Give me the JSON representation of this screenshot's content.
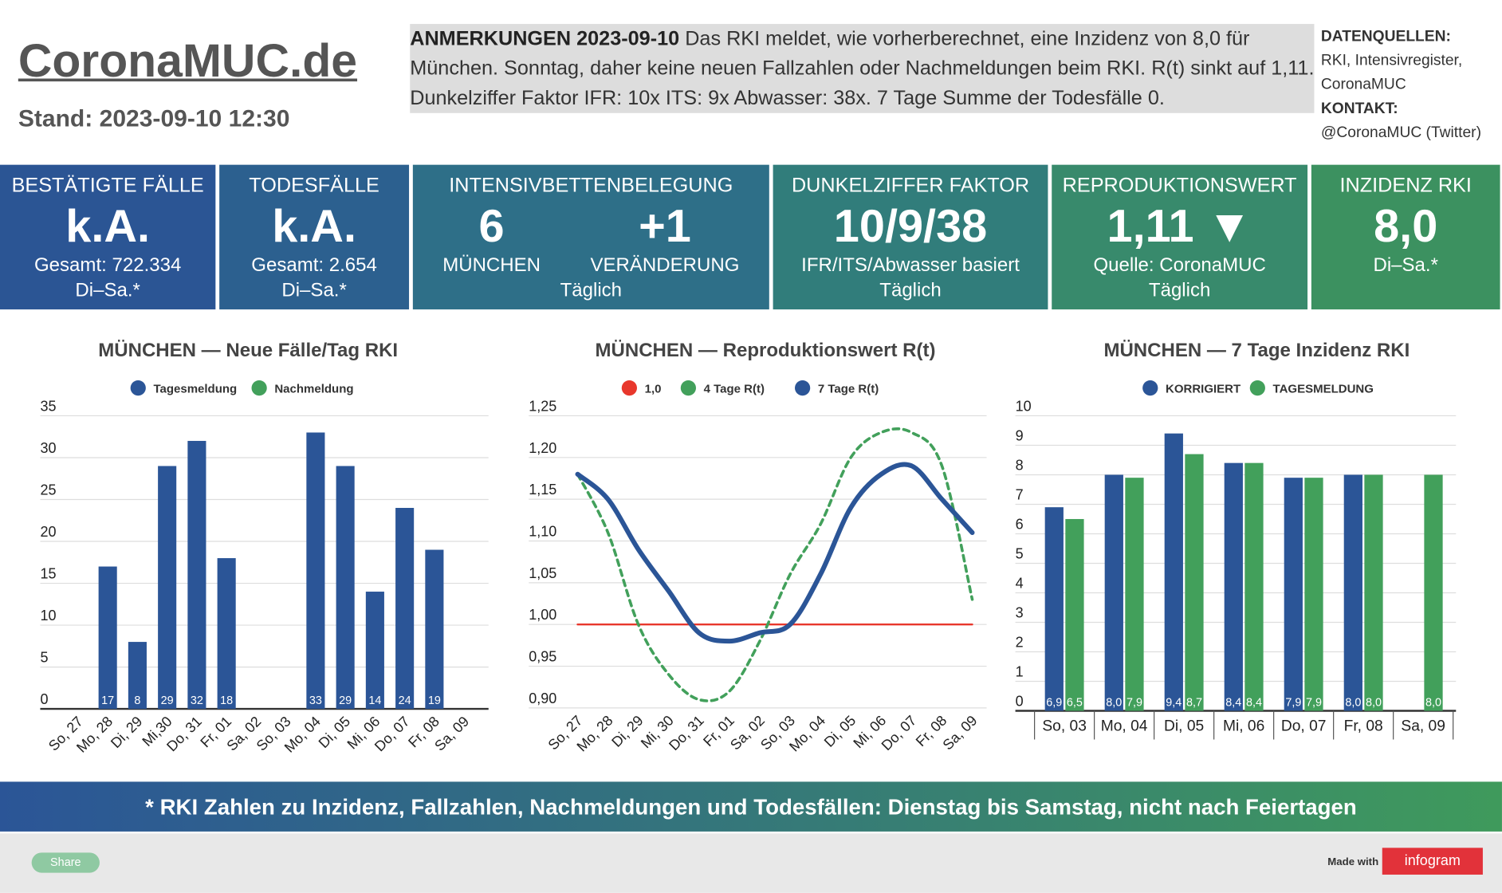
{
  "header": {
    "logo": "CoronaMUC.de",
    "stand": "Stand: 2023-09-10 12:30",
    "note_title": "ANMERKUNGEN 2023-09-10",
    "note_text": "Das RKI meldet, wie vorherberechnet, eine Inzidenz von 8,0 für München. Sonntag, daher keine neuen Fallzahlen oder Nachmeldungen beim RKI. R(t) sinkt auf 1,11. Dunkelziffer Faktor IFR: 10x ITS: 9x Abwasser: 38x. 7 Tage Summe der Todesfälle 0.",
    "sources_title": "DATENQUELLEN:",
    "sources": "RKI, Intensivregister, CoronaMUC",
    "contact_title": "KONTAKT:",
    "contact": "@CoronaMUC (Twitter)"
  },
  "kpis": [
    {
      "title": "BESTÄTIGTE FÄLLE",
      "value": "k.A.",
      "lines": [
        "Gesamt: 722.334",
        "Di–Sa.*"
      ]
    },
    {
      "title": "TODESFÄLLE",
      "value": "k.A.",
      "lines": [
        "Gesamt: 2.654",
        "Di–Sa.*"
      ]
    },
    {
      "title": "INTENSIVBETTENBELEGUNG",
      "values": [
        {
          "value": "6",
          "label": "MÜNCHEN"
        },
        {
          "value": "+1",
          "label": "VERÄNDERUNG"
        }
      ],
      "lines": [
        "Täglich"
      ]
    },
    {
      "title": "DUNKELZIFFER FAKTOR",
      "value": "10/9/38",
      "lines": [
        "IFR/ITS/Abwasser basiert",
        "Täglich"
      ]
    },
    {
      "title": "REPRODUKTIONSWERT",
      "value": "1,11 ▼",
      "lines": [
        "Quelle: CoronaMUC",
        "Täglich"
      ]
    },
    {
      "title": "INZIDENZ RKI",
      "value": "8,0",
      "lines": [
        "Di–Sa.*"
      ]
    }
  ],
  "chart_data": [
    {
      "type": "bar",
      "title": "MÜNCHEN — Neue Fälle/Tag RKI",
      "categories": [
        "So, 27",
        "Mo, 28",
        "Di, 29",
        "Mi,30",
        "Do, 31",
        "Fr, 01",
        "Sa, 02",
        "So, 03",
        "Mo, 04",
        "Di, 05",
        "Mi, 06",
        "Do, 07",
        "Fr, 08",
        "Sa, 09"
      ],
      "series": [
        {
          "name": "Tagesmeldung",
          "color": "#2b5597",
          "values": [
            null,
            17,
            8,
            29,
            32,
            18,
            null,
            null,
            33,
            29,
            14,
            24,
            19,
            null
          ]
        },
        {
          "name": "Nachmeldung",
          "color": "#42a05b",
          "values": [
            null,
            null,
            null,
            null,
            null,
            null,
            null,
            null,
            null,
            null,
            null,
            null,
            null,
            null
          ]
        }
      ],
      "ylim": [
        0,
        35
      ],
      "yticks": [
        0,
        5,
        10,
        15,
        20,
        25,
        30,
        35
      ],
      "grid": true
    },
    {
      "type": "line",
      "title": "MÜNCHEN — Reproduktionswert R(t)",
      "categories": [
        "So, 27",
        "Mo, 28",
        "Di, 29",
        "Mi, 30",
        "Do, 31",
        "Fr, 01",
        "Sa, 02",
        "So, 03",
        "Mo, 04",
        "Di, 05",
        "Mi, 06",
        "Do, 07",
        "Fr, 08",
        "Sa, 09"
      ],
      "series": [
        {
          "name": "1,0",
          "color": "#e8372c",
          "values": [
            1.0,
            1.0,
            1.0,
            1.0,
            1.0,
            1.0,
            1.0,
            1.0,
            1.0,
            1.0,
            1.0,
            1.0,
            1.0,
            1.0
          ]
        },
        {
          "name": "4 Tage R(t)",
          "color": "#42a05b",
          "dashed": true,
          "values": [
            1.18,
            1.11,
            1.0,
            0.94,
            0.91,
            0.92,
            0.98,
            1.06,
            1.12,
            1.2,
            1.23,
            1.23,
            1.19,
            1.03
          ]
        },
        {
          "name": "7 Tage R(t)",
          "color": "#2b5597",
          "values": [
            1.18,
            1.15,
            1.09,
            1.04,
            0.99,
            0.98,
            0.99,
            1.0,
            1.06,
            1.14,
            1.18,
            1.19,
            1.15,
            1.11
          ]
        }
      ],
      "ylim": [
        0.9,
        1.25
      ],
      "yticks": [
        {
          "value": 0.9,
          "label": "0,90"
        },
        {
          "value": 0.95,
          "label": "0,95"
        },
        {
          "value": 1.0,
          "label": "1,00"
        },
        {
          "value": 1.05,
          "label": "1,05"
        },
        {
          "value": 1.1,
          "label": "1,10"
        },
        {
          "value": 1.15,
          "label": "1,15"
        },
        {
          "value": 1.2,
          "label": "1,20"
        },
        {
          "value": 1.25,
          "label": "1,25"
        }
      ],
      "grid": true
    },
    {
      "type": "bar",
      "title": "MÜNCHEN — 7 Tage Inzidenz RKI",
      "categories": [
        "So, 03",
        "Mo, 04",
        "Di, 05",
        "Mi, 06",
        "Do, 07",
        "Fr, 08",
        "Sa, 09"
      ],
      "series": [
        {
          "name": "KORRIGIERT",
          "color": "#2b5597",
          "values": [
            6.9,
            8.0,
            9.4,
            8.4,
            7.9,
            8.0,
            null
          ],
          "value_labels": [
            "6,9",
            "8,0",
            "9,4",
            "8,4",
            "7,9",
            "8,0",
            null
          ]
        },
        {
          "name": "TAGESMELDUNG",
          "color": "#42a05b",
          "values": [
            6.5,
            7.9,
            8.7,
            8.4,
            7.9,
            8.0,
            8.0
          ],
          "value_labels": [
            "6,5",
            "7,9",
            "8,7",
            "8,4",
            "7,9",
            "8,0",
            "8,0"
          ]
        }
      ],
      "ylim": [
        0,
        10
      ],
      "yticks": [
        0,
        1,
        2,
        3,
        4,
        5,
        6,
        7,
        8,
        9,
        10
      ],
      "grid": true
    }
  ],
  "footer": {
    "note": "* RKI Zahlen zu Inzidenz, Fallzahlen, Nachmeldungen und Todesfällen: Dienstag bis Samstag, nicht nach Feiertagen",
    "share": "Share",
    "made_with": "Made with",
    "brand": "infogram"
  }
}
